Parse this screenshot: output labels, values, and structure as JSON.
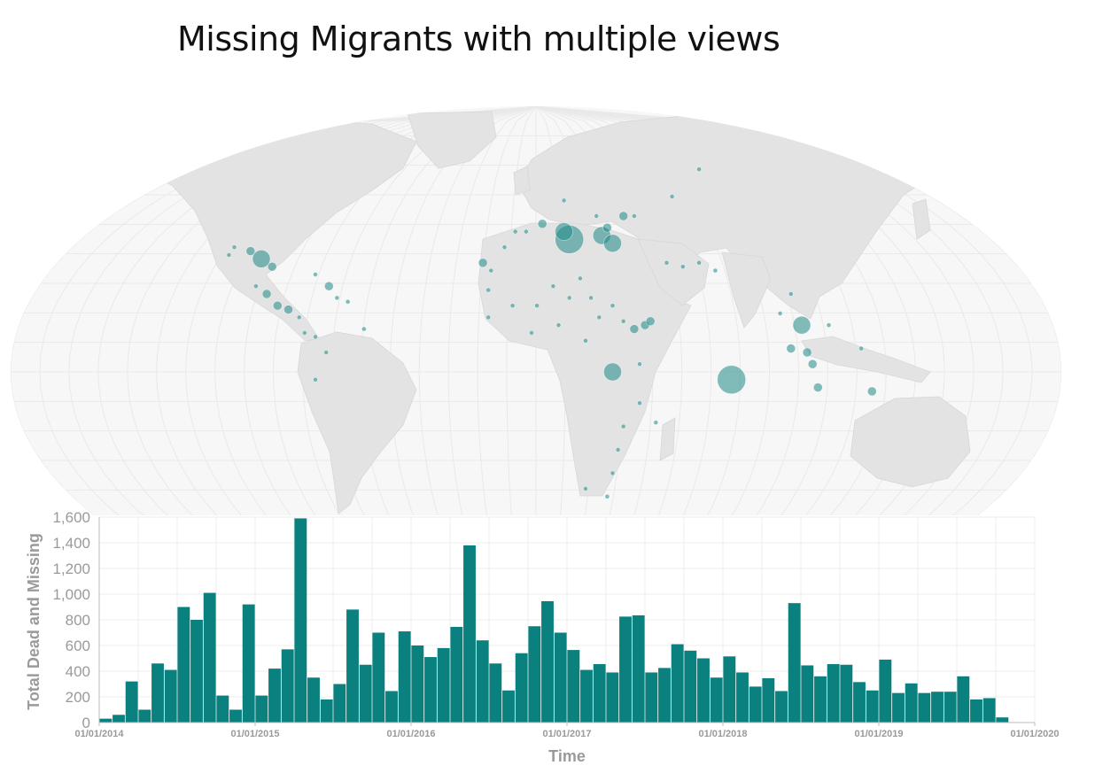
{
  "title": "Missing Migrants with multiple views",
  "colors": {
    "bar": "#0b817f",
    "marker": "#1f8a88",
    "land": "#e3e3e3",
    "ocean": "#f7f7f7",
    "grid": "#e9e9e9",
    "axis_text": "#9a9a9a"
  },
  "map": {
    "markers": [
      {
        "lon": 14,
        "lat": 34,
        "size": "xl"
      },
      {
        "lon": 12,
        "lat": 36,
        "size": "lg"
      },
      {
        "lon": 26,
        "lat": 35,
        "size": "lg"
      },
      {
        "lon": 30,
        "lat": 33,
        "size": "lg"
      },
      {
        "lon": 28,
        "lat": 37,
        "size": "md"
      },
      {
        "lon": 34,
        "lat": 40,
        "size": "md"
      },
      {
        "lon": 4,
        "lat": 38,
        "size": "md"
      },
      {
        "lon": -2,
        "lat": 36,
        "size": "sm"
      },
      {
        "lon": -6,
        "lat": 36,
        "size": "sm"
      },
      {
        "lon": -10,
        "lat": 32,
        "size": "sm"
      },
      {
        "lon": 24,
        "lat": 40,
        "size": "sm"
      },
      {
        "lon": 12,
        "lat": 44,
        "size": "sm"
      },
      {
        "lon": 38,
        "lat": 40,
        "size": "sm"
      },
      {
        "lon": -18,
        "lat": 28,
        "size": "md"
      },
      {
        "lon": -15,
        "lat": 26,
        "size": "sm"
      },
      {
        "lon": -16,
        "lat": 21,
        "size": "sm"
      },
      {
        "lon": -16,
        "lat": 14,
        "size": "sm"
      },
      {
        "lon": -7,
        "lat": 17,
        "size": "sm"
      },
      {
        "lon": 2,
        "lat": 17,
        "size": "sm"
      },
      {
        "lon": 8,
        "lat": 22,
        "size": "sm"
      },
      {
        "lon": 14,
        "lat": 19,
        "size": "sm"
      },
      {
        "lon": 18,
        "lat": 24,
        "size": "sm"
      },
      {
        "lon": 22,
        "lat": 19,
        "size": "sm"
      },
      {
        "lon": 25,
        "lat": 14,
        "size": "sm"
      },
      {
        "lon": 30,
        "lat": 17,
        "size": "sm"
      },
      {
        "lon": 34,
        "lat": 13,
        "size": "sm"
      },
      {
        "lon": 38,
        "lat": 11,
        "size": "md"
      },
      {
        "lon": 42,
        "lat": 12,
        "size": "md"
      },
      {
        "lon": 44,
        "lat": 13,
        "size": "md"
      },
      {
        "lon": 10,
        "lat": 12,
        "size": "sm"
      },
      {
        "lon": 0,
        "lat": 10,
        "size": "sm"
      },
      {
        "lon": 20,
        "lat": 8,
        "size": "sm"
      },
      {
        "lon": 30,
        "lat": 0,
        "size": "lg"
      },
      {
        "lon": 40,
        "lat": 2,
        "size": "sm"
      },
      {
        "lon": 40,
        "lat": -8,
        "size": "sm"
      },
      {
        "lon": 34,
        "lat": -14,
        "size": "sm"
      },
      {
        "lon": 46,
        "lat": -13,
        "size": "sm"
      },
      {
        "lon": 32,
        "lat": -20,
        "size": "sm"
      },
      {
        "lon": 30,
        "lat": -26,
        "size": "sm"
      },
      {
        "lon": 20,
        "lat": -30,
        "size": "sm"
      },
      {
        "lon": 28,
        "lat": -32,
        "size": "sm"
      },
      {
        "lon": 50,
        "lat": 28,
        "size": "sm"
      },
      {
        "lon": 56,
        "lat": 27,
        "size": "sm"
      },
      {
        "lon": 62,
        "lat": 28,
        "size": "sm"
      },
      {
        "lon": 68,
        "lat": 26,
        "size": "sm"
      },
      {
        "lon": 52,
        "lat": 45,
        "size": "sm"
      },
      {
        "lon": 62,
        "lat": 52,
        "size": "sm"
      },
      {
        "lon": 74,
        "lat": -2,
        "size": "xl"
      },
      {
        "lon": 96,
        "lat": 20,
        "size": "sm"
      },
      {
        "lon": 92,
        "lat": 15,
        "size": "sm"
      },
      {
        "lon": 100,
        "lat": 12,
        "size": "lg"
      },
      {
        "lon": 96,
        "lat": 6,
        "size": "md"
      },
      {
        "lon": 102,
        "lat": 5,
        "size": "md"
      },
      {
        "lon": 104,
        "lat": 2,
        "size": "md"
      },
      {
        "lon": 106,
        "lat": -4,
        "size": "md"
      },
      {
        "lon": 110,
        "lat": 12,
        "size": "sm"
      },
      {
        "lon": 122,
        "lat": 6,
        "size": "sm"
      },
      {
        "lon": 126,
        "lat": -5,
        "size": "md"
      },
      {
        "lon": -100,
        "lat": 29,
        "size": "lg"
      },
      {
        "lon": -96,
        "lat": 27,
        "size": "md"
      },
      {
        "lon": -104,
        "lat": 31,
        "size": "md"
      },
      {
        "lon": -110,
        "lat": 32,
        "size": "sm"
      },
      {
        "lon": -112,
        "lat": 30,
        "size": "sm"
      },
      {
        "lon": -98,
        "lat": 20,
        "size": "md"
      },
      {
        "lon": -94,
        "lat": 17,
        "size": "md"
      },
      {
        "lon": -90,
        "lat": 16,
        "size": "md"
      },
      {
        "lon": -86,
        "lat": 14,
        "size": "sm"
      },
      {
        "lon": -102,
        "lat": 22,
        "size": "sm"
      },
      {
        "lon": -84,
        "lat": 10,
        "size": "sm"
      },
      {
        "lon": -80,
        "lat": 9,
        "size": "sm"
      },
      {
        "lon": -75,
        "lat": 22,
        "size": "md"
      },
      {
        "lon": -72,
        "lat": 19,
        "size": "sm"
      },
      {
        "lon": -68,
        "lat": 18,
        "size": "sm"
      },
      {
        "lon": -80,
        "lat": 25,
        "size": "sm"
      },
      {
        "lon": -76,
        "lat": 5,
        "size": "sm"
      },
      {
        "lon": -62,
        "lat": 11,
        "size": "sm"
      },
      {
        "lon": -80,
        "lat": -2,
        "size": "sm"
      }
    ]
  },
  "chart_data": {
    "type": "bar",
    "xlabel": "Time",
    "ylabel": "Total Dead and Missing",
    "ylim": [
      0,
      1600
    ],
    "yticks": [
      0,
      200,
      400,
      600,
      800,
      1000,
      1200,
      1400,
      1600
    ],
    "ytick_labels": [
      "0",
      "200",
      "400",
      "600",
      "800",
      "1,000",
      "1,200",
      "1,400",
      "1,600"
    ],
    "xrange": [
      "2014-01",
      "2020-01"
    ],
    "xtick_labels": [
      "01/01/2014",
      "01/01/2015",
      "01/01/2016",
      "01/01/2017",
      "01/01/2018",
      "01/01/2019",
      "01/01/2020"
    ],
    "grid": true,
    "categories": [
      "2014-01",
      "2014-02",
      "2014-03",
      "2014-04",
      "2014-05",
      "2014-06",
      "2014-07",
      "2014-08",
      "2014-09",
      "2014-10",
      "2014-11",
      "2014-12",
      "2015-01",
      "2015-02",
      "2015-03",
      "2015-04",
      "2015-05",
      "2015-06",
      "2015-07",
      "2015-08",
      "2015-09",
      "2015-10",
      "2015-11",
      "2015-12",
      "2016-01",
      "2016-02",
      "2016-03",
      "2016-04",
      "2016-05",
      "2016-06",
      "2016-07",
      "2016-08",
      "2016-09",
      "2016-10",
      "2016-11",
      "2016-12",
      "2017-01",
      "2017-02",
      "2017-03",
      "2017-04",
      "2017-05",
      "2017-06",
      "2017-07",
      "2017-08",
      "2017-09",
      "2017-10",
      "2017-11",
      "2017-12",
      "2018-01",
      "2018-02",
      "2018-03",
      "2018-04",
      "2018-05",
      "2018-06",
      "2018-07",
      "2018-08",
      "2018-09",
      "2018-10",
      "2018-11",
      "2018-12",
      "2019-01",
      "2019-02",
      "2019-03",
      "2019-04",
      "2019-05",
      "2019-06",
      "2019-07",
      "2019-08",
      "2019-09",
      "2019-10",
      "2019-11",
      "2019-12"
    ],
    "values": [
      30,
      60,
      320,
      100,
      460,
      410,
      900,
      800,
      1010,
      210,
      100,
      920,
      210,
      420,
      570,
      1590,
      350,
      180,
      300,
      880,
      450,
      700,
      245,
      710,
      600,
      510,
      580,
      745,
      1380,
      640,
      460,
      250,
      540,
      750,
      945,
      700,
      565,
      410,
      455,
      390,
      825,
      835,
      390,
      425,
      610,
      560,
      500,
      350,
      515,
      390,
      280,
      345,
      245,
      930,
      445,
      360,
      455,
      450,
      315,
      250,
      490,
      230,
      305,
      230,
      240,
      240,
      360,
      180,
      190,
      40,
      0,
      0
    ]
  }
}
